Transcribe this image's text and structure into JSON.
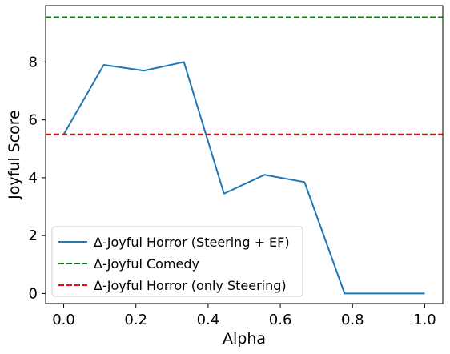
{
  "chart_data": {
    "type": "line",
    "xlabel": "Alpha",
    "ylabel": "Joyful Score",
    "xlim": [
      -0.05,
      1.05
    ],
    "ylim": [
      -0.35,
      9.95
    ],
    "xticks": [
      0.0,
      0.2,
      0.4,
      0.6,
      0.8,
      1.0
    ],
    "xtick_labels": [
      "0.0",
      "0.2",
      "0.4",
      "0.6",
      "0.8",
      "1.0"
    ],
    "yticks": [
      0,
      2,
      4,
      6,
      8
    ],
    "ytick_labels": [
      "0",
      "2",
      "4",
      "6",
      "8"
    ],
    "grid": false,
    "legend_position": "lower-left",
    "series": [
      {
        "name": "Δ-Joyful Horror (Steering + EF)",
        "style": "solid",
        "color": "#1f77b4",
        "x": [
          0.0,
          0.111,
          0.222,
          0.333,
          0.444,
          0.556,
          0.667,
          0.778,
          0.889,
          1.0
        ],
        "y": [
          5.5,
          7.9,
          7.7,
          8.0,
          3.45,
          4.1,
          3.85,
          0.0,
          0.0,
          0.0
        ]
      },
      {
        "name": "Δ-Joyful Comedy",
        "style": "dashed",
        "color": "#008000",
        "hline": 9.55
      },
      {
        "name": "Δ-Joyful Horror (only Steering)",
        "style": "dashed",
        "color": "#ff0000",
        "hline": 5.5
      }
    ]
  }
}
